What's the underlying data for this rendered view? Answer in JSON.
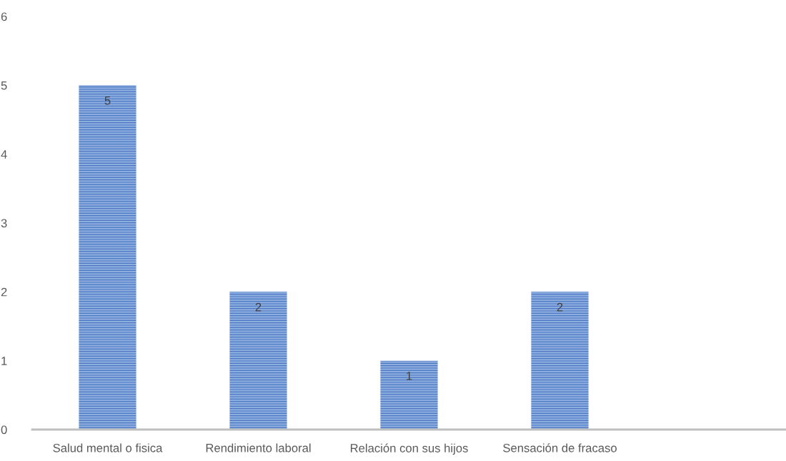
{
  "chart_data": {
    "type": "bar",
    "categories": [
      "Salud mental o fisica",
      "Rendimiento laboral",
      "Relación con sus hijos",
      "Sensación de fracaso",
      null
    ],
    "values": [
      5,
      2,
      1,
      2,
      null
    ],
    "color": "#8eaee0",
    "ylim": [
      0,
      6
    ],
    "yticks": [
      0,
      1,
      2,
      3,
      4,
      5,
      6
    ],
    "data_labels": true,
    "grid": false,
    "legend": false
  }
}
